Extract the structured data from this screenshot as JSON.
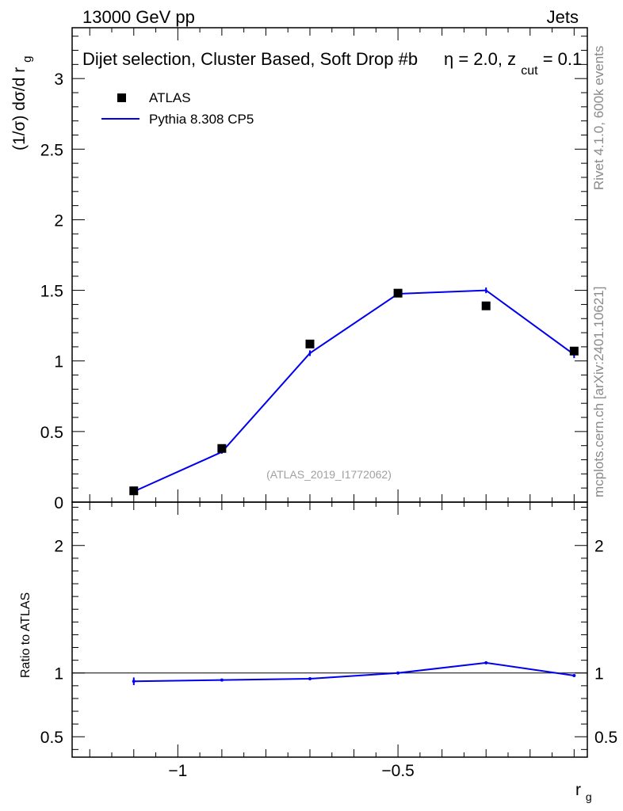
{
  "header": {
    "left": "13000 GeV pp",
    "right": "Jets"
  },
  "plot_title": {
    "main": "Dijet selection, Cluster Based, Soft Drop #b",
    "eta_part": "η = 2.0, z",
    "cut_sub": "cut",
    "tail": " = 0.1"
  },
  "side_labels": {
    "rivet": "Rivet 4.1.0,  600k events",
    "mcplots": "mcplots.cern.ch [arXiv:2401.10621]"
  },
  "analysis_ref": "(ATLAS_2019_I1772062)",
  "legend": {
    "data_label": "ATLAS",
    "mc_label": "Pythia 8.308 CP5"
  },
  "axes": {
    "ylabel_main": "(1/σ) dσ/d r",
    "ylabel_main_sub": "g",
    "ylabel_ratio": "Ratio to ATLAS",
    "xlabel": "r",
    "xlabel_sub": "g"
  },
  "chart_data": [
    {
      "type": "scatter",
      "panel": "main",
      "x_range": [
        -1.24,
        -0.07
      ],
      "y_range": [
        0,
        3.36
      ],
      "x_ticks": [
        -1,
        -0.5
      ],
      "x_tick_labels": [
        "−1",
        "−0.5"
      ],
      "y_ticks": [
        0,
        0.5,
        1,
        1.5,
        2,
        2.5,
        3
      ],
      "y_tick_labels": [
        "0",
        "0.5",
        "1",
        "1.5",
        "2",
        "2.5",
        "3"
      ],
      "series": [
        {
          "name": "ATLAS",
          "style": "markers",
          "color": "#000000",
          "x": [
            -1.1,
            -0.9,
            -0.7,
            -0.5,
            -0.3,
            -0.1
          ],
          "y": [
            0.08,
            0.38,
            1.12,
            1.48,
            1.39,
            1.07
          ]
        },
        {
          "name": "Pythia 8.308 CP5",
          "style": "line",
          "color": "#0000ee",
          "x": [
            -1.1,
            -0.9,
            -0.7,
            -0.5,
            -0.3,
            -0.1
          ],
          "y": [
            0.075,
            0.355,
            1.055,
            1.475,
            1.5,
            1.045
          ],
          "err": [
            0.005,
            0.012,
            0.02,
            0.02,
            0.02,
            0.025
          ]
        }
      ]
    },
    {
      "type": "line",
      "panel": "ratio",
      "x_range": [
        -1.24,
        -0.07
      ],
      "y_range": [
        0.34,
        2.34
      ],
      "y_ticks": [
        0.5,
        1,
        2
      ],
      "y_tick_labels": [
        "0.5",
        "1",
        "2"
      ],
      "reference_line": 1,
      "series": [
        {
          "name": "Pythia 8.308 CP5",
          "color": "#0000ee",
          "x": [
            -1.1,
            -0.9,
            -0.7,
            -0.5,
            -0.3,
            -0.1
          ],
          "y": [
            0.935,
            0.945,
            0.955,
            1.0,
            1.08,
            0.98
          ],
          "err": [
            0.03,
            0.01,
            0.008,
            0.005,
            0.008,
            0.01
          ]
        }
      ]
    }
  ]
}
